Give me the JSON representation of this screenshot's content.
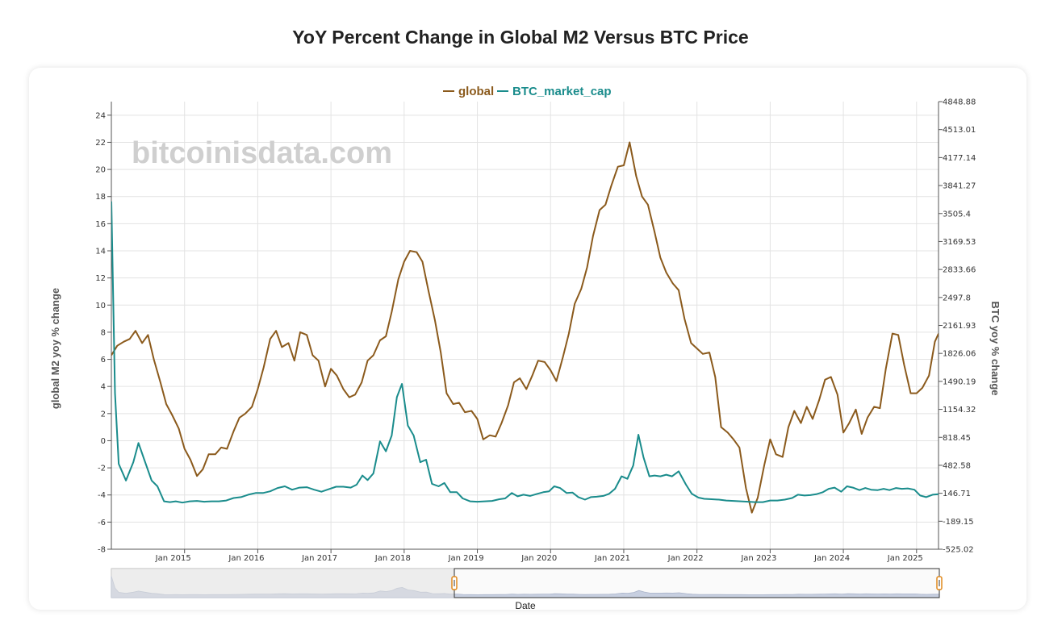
{
  "title": "YoY Percent Change in Global M2 Versus BTC Price",
  "watermark": "bitcoinisdata.com",
  "legend": [
    {
      "name": "global",
      "color": "#8B5A1C"
    },
    {
      "name": "BTC_market_cap",
      "color": "#1A8C8C"
    }
  ],
  "chart_data": {
    "type": "line",
    "title": "YoY Percent Change in Global M2 Versus BTC Price",
    "xlabel": "Date",
    "ylabel_left": "global M2 yoy % change",
    "ylabel_right": "BTC yoy % change",
    "x_range": [
      2014.0,
      2025.3
    ],
    "ylim_left": [
      -8,
      25
    ],
    "ylim_right": [
      -525.02,
      4848.88
    ],
    "left_ticks": [
      "24",
      "22",
      "20",
      "18",
      "16",
      "14",
      "12",
      "10",
      "8",
      "6",
      "4",
      "2",
      "0",
      "-2",
      "-4",
      "-6",
      "-8"
    ],
    "right_ticks": [
      "4848.88",
      "4513.01",
      "4177.14",
      "3841.27",
      "3505.4",
      "3169.53",
      "2833.66",
      "2497.8",
      "2161.93",
      "1826.06",
      "1490.19",
      "1154.32",
      "818.45",
      "482.58",
      "146.71",
      "-189.15",
      "-525.02"
    ],
    "x_ticks": [
      {
        "label": "Jan 2015",
        "x": 2015
      },
      {
        "label": "Jan 2016",
        "x": 2016
      },
      {
        "label": "Jan 2017",
        "x": 2017
      },
      {
        "label": "Jan 2018",
        "x": 2018
      },
      {
        "label": "Jan 2019",
        "x": 2019
      },
      {
        "label": "Jan 2020",
        "x": 2020
      },
      {
        "label": "Jan 2021",
        "x": 2021
      },
      {
        "label": "Jan 2022",
        "x": 2022
      },
      {
        "label": "Jan 2023",
        "x": 2023
      },
      {
        "label": "Jan 2024",
        "x": 2024
      },
      {
        "label": "Jan 2025",
        "x": 2025
      }
    ],
    "series": [
      {
        "name": "global",
        "axis": "left",
        "color": "#8B5A1C",
        "points": [
          [
            2014.0,
            6.3
          ],
          [
            2014.08,
            7.0
          ],
          [
            2014.17,
            7.3
          ],
          [
            2014.25,
            7.5
          ],
          [
            2014.33,
            8.1
          ],
          [
            2014.42,
            7.2
          ],
          [
            2014.5,
            7.8
          ],
          [
            2014.58,
            6.0
          ],
          [
            2014.67,
            4.3
          ],
          [
            2014.75,
            2.7
          ],
          [
            2014.83,
            1.9
          ],
          [
            2014.92,
            0.9
          ],
          [
            2015.0,
            -0.6
          ],
          [
            2015.08,
            -1.4
          ],
          [
            2015.17,
            -2.6
          ],
          [
            2015.25,
            -2.1
          ],
          [
            2015.33,
            -1.0
          ],
          [
            2015.42,
            -1.0
          ],
          [
            2015.5,
            -0.5
          ],
          [
            2015.58,
            -0.6
          ],
          [
            2015.67,
            0.7
          ],
          [
            2015.75,
            1.7
          ],
          [
            2015.83,
            2.0
          ],
          [
            2015.92,
            2.5
          ],
          [
            2016.0,
            3.8
          ],
          [
            2016.08,
            5.4
          ],
          [
            2016.17,
            7.5
          ],
          [
            2016.25,
            8.1
          ],
          [
            2016.33,
            6.9
          ],
          [
            2016.42,
            7.2
          ],
          [
            2016.5,
            5.9
          ],
          [
            2016.58,
            8.0
          ],
          [
            2016.67,
            7.8
          ],
          [
            2016.75,
            6.3
          ],
          [
            2016.83,
            5.9
          ],
          [
            2016.92,
            4.0
          ],
          [
            2017.0,
            5.3
          ],
          [
            2017.08,
            4.8
          ],
          [
            2017.17,
            3.8
          ],
          [
            2017.25,
            3.2
          ],
          [
            2017.33,
            3.4
          ],
          [
            2017.42,
            4.3
          ],
          [
            2017.5,
            5.9
          ],
          [
            2017.58,
            6.3
          ],
          [
            2017.67,
            7.4
          ],
          [
            2017.75,
            7.7
          ],
          [
            2017.83,
            9.5
          ],
          [
            2017.92,
            11.9
          ],
          [
            2018.0,
            13.2
          ],
          [
            2018.08,
            14.0
          ],
          [
            2018.17,
            13.9
          ],
          [
            2018.25,
            13.2
          ],
          [
            2018.33,
            11.1
          ],
          [
            2018.42,
            8.9
          ],
          [
            2018.5,
            6.5
          ],
          [
            2018.58,
            3.5
          ],
          [
            2018.67,
            2.7
          ],
          [
            2018.75,
            2.8
          ],
          [
            2018.83,
            2.1
          ],
          [
            2018.92,
            2.2
          ],
          [
            2019.0,
            1.6
          ],
          [
            2019.08,
            0.1
          ],
          [
            2019.17,
            0.4
          ],
          [
            2019.25,
            0.3
          ],
          [
            2019.33,
            1.3
          ],
          [
            2019.42,
            2.6
          ],
          [
            2019.5,
            4.3
          ],
          [
            2019.58,
            4.6
          ],
          [
            2019.67,
            3.8
          ],
          [
            2019.75,
            4.8
          ],
          [
            2019.83,
            5.9
          ],
          [
            2019.92,
            5.8
          ],
          [
            2020.0,
            5.2
          ],
          [
            2020.08,
            4.4
          ],
          [
            2020.17,
            6.2
          ],
          [
            2020.25,
            7.9
          ],
          [
            2020.33,
            10.1
          ],
          [
            2020.42,
            11.2
          ],
          [
            2020.5,
            12.8
          ],
          [
            2020.58,
            15.1
          ],
          [
            2020.67,
            17.0
          ],
          [
            2020.75,
            17.4
          ],
          [
            2020.83,
            18.8
          ],
          [
            2020.92,
            20.2
          ],
          [
            2021.0,
            20.3
          ],
          [
            2021.08,
            22.0
          ],
          [
            2021.17,
            19.5
          ],
          [
            2021.25,
            18.0
          ],
          [
            2021.33,
            17.4
          ],
          [
            2021.42,
            15.4
          ],
          [
            2021.5,
            13.5
          ],
          [
            2021.58,
            12.4
          ],
          [
            2021.67,
            11.6
          ],
          [
            2021.75,
            11.1
          ],
          [
            2021.83,
            9.0
          ],
          [
            2021.92,
            7.2
          ],
          [
            2022.0,
            6.8
          ],
          [
            2022.08,
            6.4
          ],
          [
            2022.17,
            6.5
          ],
          [
            2022.25,
            4.7
          ],
          [
            2022.33,
            1.0
          ],
          [
            2022.42,
            0.6
          ],
          [
            2022.5,
            0.1
          ],
          [
            2022.58,
            -0.5
          ],
          [
            2022.67,
            -3.5
          ],
          [
            2022.75,
            -5.3
          ],
          [
            2022.83,
            -4.2
          ],
          [
            2022.92,
            -1.8
          ],
          [
            2023.0,
            0.1
          ],
          [
            2023.08,
            -1.0
          ],
          [
            2023.17,
            -1.2
          ],
          [
            2023.25,
            1.0
          ],
          [
            2023.33,
            2.2
          ],
          [
            2023.42,
            1.3
          ],
          [
            2023.5,
            2.5
          ],
          [
            2023.58,
            1.6
          ],
          [
            2023.67,
            3.0
          ],
          [
            2023.75,
            4.5
          ],
          [
            2023.83,
            4.7
          ],
          [
            2023.92,
            3.4
          ],
          [
            2024.0,
            0.6
          ],
          [
            2024.08,
            1.3
          ],
          [
            2024.17,
            2.3
          ],
          [
            2024.25,
            0.5
          ],
          [
            2024.33,
            1.7
          ],
          [
            2024.42,
            2.5
          ],
          [
            2024.5,
            2.4
          ],
          [
            2024.58,
            5.3
          ],
          [
            2024.67,
            7.9
          ],
          [
            2024.75,
            7.8
          ],
          [
            2024.83,
            5.6
          ],
          [
            2024.92,
            3.5
          ],
          [
            2025.0,
            3.5
          ],
          [
            2025.08,
            3.9
          ],
          [
            2025.17,
            4.8
          ],
          [
            2025.25,
            7.3
          ],
          [
            2025.3,
            7.9
          ]
        ]
      },
      {
        "name": "BTC_market_cap",
        "axis": "right",
        "color": "#1A8C8C",
        "points": [
          [
            2014.0,
            3650
          ],
          [
            2014.05,
            1350
          ],
          [
            2014.1,
            500
          ],
          [
            2014.2,
            300
          ],
          [
            2014.3,
            520
          ],
          [
            2014.37,
            750
          ],
          [
            2014.45,
            550
          ],
          [
            2014.55,
            300
          ],
          [
            2014.63,
            230
          ],
          [
            2014.72,
            50
          ],
          [
            2014.8,
            40
          ],
          [
            2014.88,
            50
          ],
          [
            2014.97,
            35
          ],
          [
            2015.07,
            50
          ],
          [
            2015.17,
            55
          ],
          [
            2015.27,
            45
          ],
          [
            2015.37,
            50
          ],
          [
            2015.47,
            50
          ],
          [
            2015.57,
            60
          ],
          [
            2015.67,
            90
          ],
          [
            2015.77,
            100
          ],
          [
            2015.87,
            130
          ],
          [
            2015.97,
            150
          ],
          [
            2016.07,
            150
          ],
          [
            2016.17,
            170
          ],
          [
            2016.27,
            210
          ],
          [
            2016.37,
            230
          ],
          [
            2016.47,
            190
          ],
          [
            2016.57,
            215
          ],
          [
            2016.67,
            220
          ],
          [
            2016.77,
            190
          ],
          [
            2016.87,
            165
          ],
          [
            2016.97,
            195
          ],
          [
            2017.07,
            225
          ],
          [
            2017.17,
            225
          ],
          [
            2017.27,
            215
          ],
          [
            2017.35,
            250
          ],
          [
            2017.43,
            360
          ],
          [
            2017.5,
            305
          ],
          [
            2017.58,
            385
          ],
          [
            2017.67,
            770
          ],
          [
            2017.75,
            650
          ],
          [
            2017.83,
            840
          ],
          [
            2017.9,
            1300
          ],
          [
            2017.97,
            1460
          ],
          [
            2018.05,
            960
          ],
          [
            2018.13,
            840
          ],
          [
            2018.22,
            520
          ],
          [
            2018.3,
            550
          ],
          [
            2018.38,
            260
          ],
          [
            2018.47,
            230
          ],
          [
            2018.55,
            270
          ],
          [
            2018.63,
            160
          ],
          [
            2018.72,
            160
          ],
          [
            2018.8,
            85
          ],
          [
            2018.9,
            50
          ],
          [
            2019.0,
            45
          ],
          [
            2019.1,
            50
          ],
          [
            2019.2,
            55
          ],
          [
            2019.3,
            75
          ],
          [
            2019.38,
            85
          ],
          [
            2019.47,
            150
          ],
          [
            2019.55,
            110
          ],
          [
            2019.63,
            130
          ],
          [
            2019.72,
            115
          ],
          [
            2019.8,
            135
          ],
          [
            2019.9,
            160
          ],
          [
            2019.98,
            170
          ],
          [
            2020.05,
            230
          ],
          [
            2020.13,
            210
          ],
          [
            2020.22,
            150
          ],
          [
            2020.3,
            155
          ],
          [
            2020.38,
            100
          ],
          [
            2020.47,
            70
          ],
          [
            2020.55,
            100
          ],
          [
            2020.63,
            105
          ],
          [
            2020.72,
            115
          ],
          [
            2020.8,
            140
          ],
          [
            2020.88,
            200
          ],
          [
            2020.97,
            350
          ],
          [
            2021.05,
            320
          ],
          [
            2021.13,
            480
          ],
          [
            2021.2,
            850
          ],
          [
            2021.27,
            580
          ],
          [
            2021.35,
            350
          ],
          [
            2021.42,
            360
          ],
          [
            2021.5,
            350
          ],
          [
            2021.58,
            370
          ],
          [
            2021.66,
            350
          ],
          [
            2021.75,
            410
          ],
          [
            2021.85,
            250
          ],
          [
            2021.93,
            140
          ],
          [
            2022.02,
            95
          ],
          [
            2022.1,
            80
          ],
          [
            2022.2,
            75
          ],
          [
            2022.3,
            70
          ],
          [
            2022.4,
            60
          ],
          [
            2022.5,
            55
          ],
          [
            2022.6,
            50
          ],
          [
            2022.7,
            45
          ],
          [
            2022.8,
            40
          ],
          [
            2022.9,
            40
          ],
          [
            2023.0,
            60
          ],
          [
            2023.1,
            60
          ],
          [
            2023.2,
            70
          ],
          [
            2023.3,
            90
          ],
          [
            2023.38,
            130
          ],
          [
            2023.47,
            120
          ],
          [
            2023.55,
            125
          ],
          [
            2023.63,
            135
          ],
          [
            2023.72,
            160
          ],
          [
            2023.8,
            200
          ],
          [
            2023.88,
            215
          ],
          [
            2023.97,
            165
          ],
          [
            2024.05,
            230
          ],
          [
            2024.13,
            215
          ],
          [
            2024.22,
            185
          ],
          [
            2024.3,
            210
          ],
          [
            2024.38,
            190
          ],
          [
            2024.47,
            185
          ],
          [
            2024.55,
            200
          ],
          [
            2024.63,
            185
          ],
          [
            2024.72,
            210
          ],
          [
            2024.8,
            200
          ],
          [
            2024.88,
            205
          ],
          [
            2024.97,
            190
          ],
          [
            2025.05,
            120
          ],
          [
            2025.13,
            100
          ],
          [
            2025.22,
            130
          ],
          [
            2025.3,
            135
          ]
        ]
      }
    ]
  }
}
